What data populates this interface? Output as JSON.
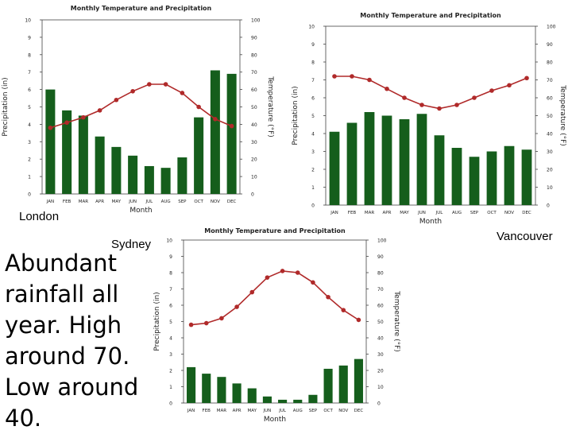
{
  "colors": {
    "bar": "#155e1c",
    "line": "#b02a2a",
    "axis": "#444444",
    "text": "#222222"
  },
  "note": "Abundant rainfall all year.  High around 70.  Low around 40.",
  "chart_data": [
    {
      "type": "bar+line",
      "city": "London",
      "title": "Monthly Temperature and Precipitation",
      "xlabel": "Month",
      "ylabel": "Precipitation (in)",
      "y2label": "Temperature (°F)",
      "ylim": [
        0,
        10
      ],
      "y2lim": [
        0,
        100
      ],
      "yticks": [
        "0",
        "1",
        "2",
        "3",
        "4",
        "5",
        "6",
        "7",
        "8",
        "9",
        "10"
      ],
      "y2ticks": [
        "0",
        "10",
        "20",
        "30",
        "40",
        "50",
        "60",
        "70",
        "80",
        "90",
        "100"
      ],
      "categories": [
        "JAN",
        "FEB",
        "MAR",
        "APR",
        "MAY",
        "JUN",
        "JUL",
        "AUG",
        "SEP",
        "OCT",
        "NOV",
        "DEC"
      ],
      "series": [
        {
          "name": "Precipitation (in)",
          "kind": "bar",
          "values": [
            6.0,
            4.8,
            4.5,
            3.3,
            2.7,
            2.2,
            1.6,
            1.5,
            2.1,
            4.4,
            7.1,
            6.9
          ]
        },
        {
          "name": "Temperature (°F)",
          "kind": "line",
          "values": [
            38,
            41,
            44,
            48,
            54,
            59,
            63,
            63,
            58,
            50,
            43,
            39
          ]
        }
      ]
    },
    {
      "type": "bar+line",
      "city": "Vancouver",
      "title": "Monthly Temperature and Precipitation",
      "xlabel": "Month",
      "ylabel": "Precipitation (in)",
      "y2label": "Temperature (°F)",
      "ylim": [
        0,
        10
      ],
      "y2lim": [
        0,
        100
      ],
      "yticks": [
        "0",
        "1",
        "2",
        "3",
        "4",
        "5",
        "6",
        "7",
        "8",
        "9",
        "10"
      ],
      "y2ticks": [
        "0",
        "10",
        "20",
        "30",
        "40",
        "50",
        "60",
        "70",
        "80",
        "90",
        "100"
      ],
      "categories": [
        "JAN",
        "FEB",
        "MAR",
        "APR",
        "MAY",
        "JUN",
        "JUL",
        "AUG",
        "SEP",
        "OCT",
        "NOV",
        "DEC"
      ],
      "series": [
        {
          "name": "Precipitation (in)",
          "kind": "bar",
          "values": [
            4.1,
            4.6,
            5.2,
            5.0,
            4.8,
            5.1,
            3.9,
            3.2,
            2.7,
            3.0,
            3.3,
            3.1
          ]
        },
        {
          "name": "Temperature (°F)",
          "kind": "line",
          "values": [
            72,
            72,
            70,
            65,
            60,
            56,
            54,
            56,
            60,
            64,
            67,
            71
          ]
        }
      ]
    },
    {
      "type": "bar+line",
      "city": "Sydney",
      "title": "Monthly Temperature and Precipitation",
      "xlabel": "Month",
      "ylabel": "Precipitation (in)",
      "y2label": "Temperature (°F)",
      "ylim": [
        0,
        10
      ],
      "y2lim": [
        0,
        100
      ],
      "yticks": [
        "0",
        "1",
        "2",
        "3",
        "4",
        "5",
        "6",
        "7",
        "8",
        "9",
        "10"
      ],
      "y2ticks": [
        "0",
        "10",
        "20",
        "30",
        "40",
        "50",
        "60",
        "70",
        "80",
        "90",
        "100"
      ],
      "categories": [
        "JAN",
        "FEB",
        "MAR",
        "APR",
        "MAY",
        "JUN",
        "JUL",
        "AUG",
        "SEP",
        "OCT",
        "NOV",
        "DEC"
      ],
      "series": [
        {
          "name": "Precipitation (in)",
          "kind": "bar",
          "values": [
            2.2,
            1.8,
            1.6,
            1.2,
            0.9,
            0.4,
            0.2,
            0.2,
            0.5,
            2.1,
            2.3,
            2.7
          ]
        },
        {
          "name": "Temperature (°F)",
          "kind": "line",
          "values": [
            48,
            49,
            52,
            59,
            68,
            77,
            81,
            80,
            74,
            65,
            57,
            51
          ]
        }
      ]
    }
  ]
}
